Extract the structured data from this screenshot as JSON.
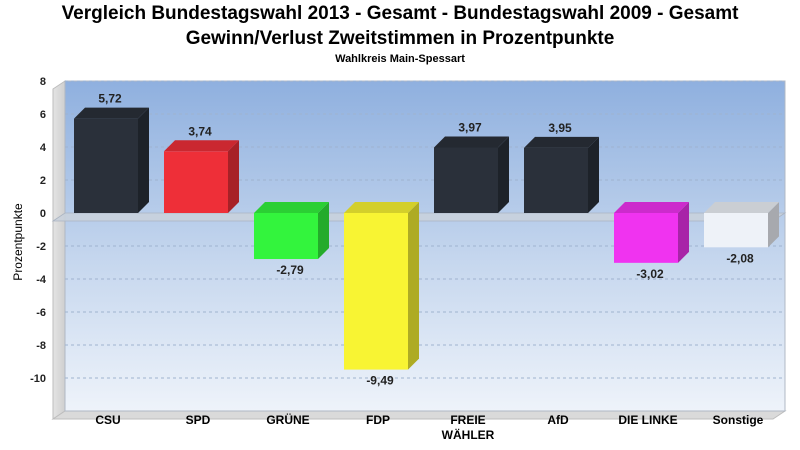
{
  "chart_data": {
    "type": "bar",
    "title": "Vergleich Bundestagswahl 2013 - Gesamt - Bundestagswahl 2009 - Gesamt",
    "subtitle": "Gewinn/Verlust Zweitstimmen in Prozentpunkte",
    "subsubtitle": "Wahlkreis Main-Spessart",
    "ylabel": "Prozentpunkte",
    "xlabel": "",
    "ylim": [
      -12,
      8
    ],
    "yticks": [
      8,
      6,
      4,
      2,
      0,
      -2,
      -4,
      -6,
      -8,
      -10
    ],
    "categories": [
      "CSU",
      "SPD",
      "GRÜNE",
      "FDP",
      "FREIE WÄHLER",
      "AfD",
      "DIE LINKE",
      "Sonstige"
    ],
    "values": [
      5.72,
      3.74,
      -2.79,
      -9.49,
      3.97,
      3.95,
      -3.02,
      -2.08
    ],
    "value_labels": [
      "5,72",
      "3,74",
      "-2,79",
      "-9,49",
      "3,97",
      "3,95",
      "-3,02",
      "-2,08"
    ],
    "colors": [
      "#2a303a",
      "#ee2f38",
      "#33f43d",
      "#f8f433",
      "#2a303a",
      "#2a303a",
      "#f033f0",
      "#eef2f8"
    ],
    "legend": "none",
    "grid": true
  }
}
